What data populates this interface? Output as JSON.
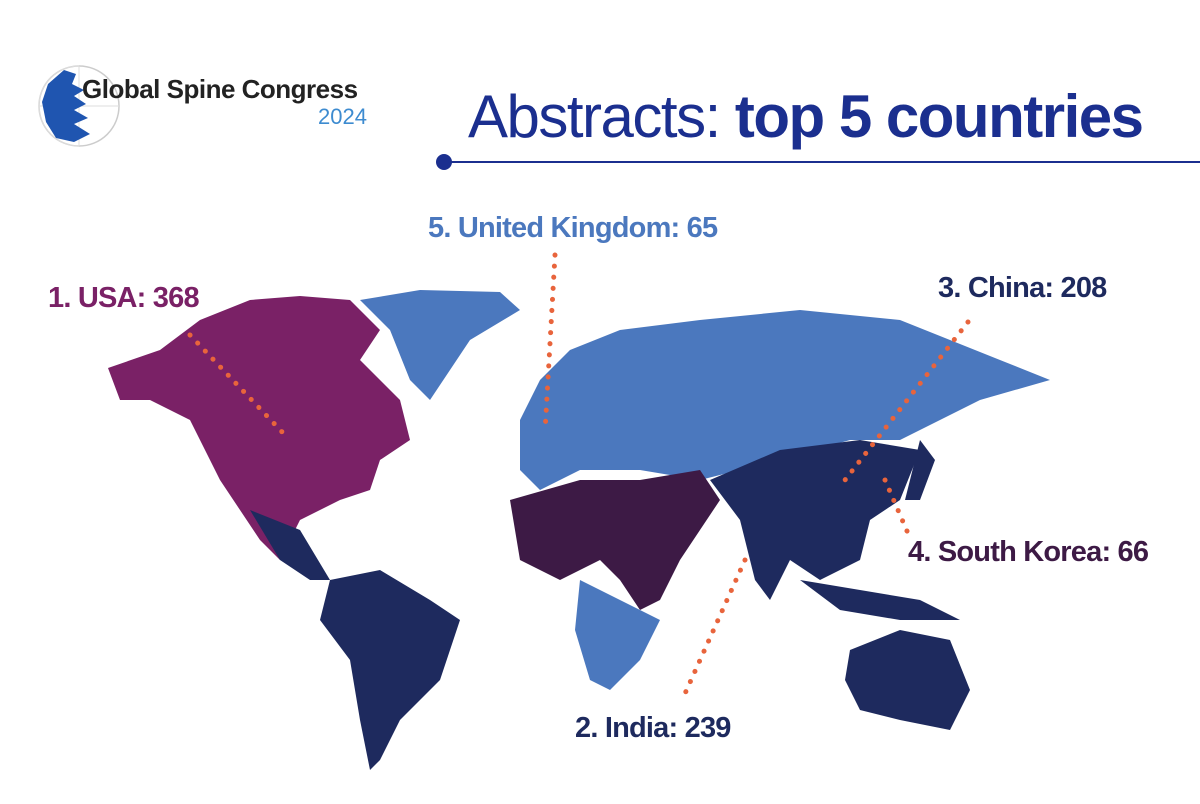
{
  "logo": {
    "title": "Global Spine Congress",
    "year": "2024"
  },
  "header": {
    "title_regular": "Abstracts: ",
    "title_bold": "top 5 countries"
  },
  "countries": [
    {
      "rank_label": "1. USA: 368",
      "country": "USA",
      "abstracts": 368,
      "color": "#7a2166"
    },
    {
      "rank_label": "2. India: 239",
      "country": "India",
      "abstracts": 239,
      "color": "#1e2a5e"
    },
    {
      "rank_label": "3. China: 208",
      "country": "China",
      "abstracts": 208,
      "color": "#1e2a5e"
    },
    {
      "rank_label": "4. South Korea: 66",
      "country": "South Korea",
      "abstracts": 66,
      "color": "#3d1a45"
    },
    {
      "rank_label": "5. United Kingdom: 65",
      "country": "United Kingdom",
      "abstracts": 65,
      "color": "#4b78be"
    }
  ],
  "colors": {
    "accent": "#1b2f8f",
    "leader_line": "#e8643c",
    "north_america": "#7a2166",
    "europe_russia": "#4b78be",
    "asia_south_america_oceania": "#1e2a5e",
    "africa_middle_east": "#3d1a45"
  }
}
